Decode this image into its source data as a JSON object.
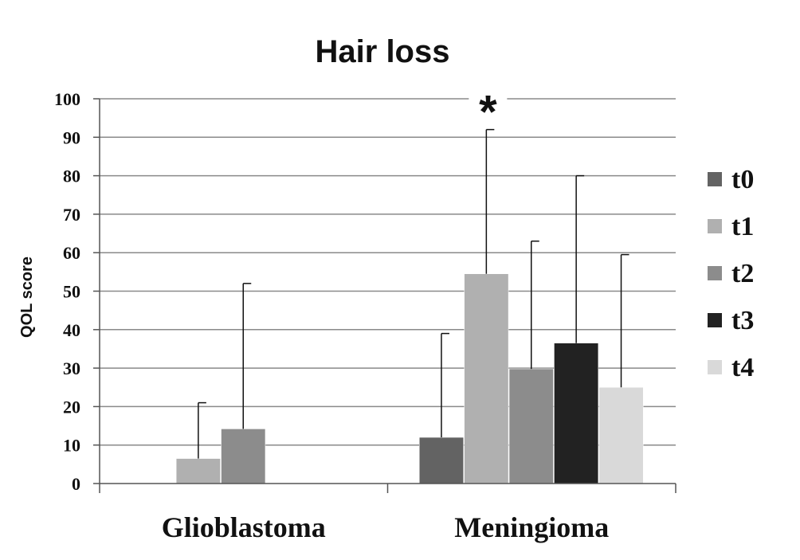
{
  "chart_data": {
    "type": "bar",
    "title": "Hair loss",
    "ylabel": "QOL score",
    "xlabel": "",
    "ylim": [
      0,
      100
    ],
    "yticks": [
      "0",
      "10",
      "20",
      "30",
      "40",
      "50",
      "60",
      "70",
      "80",
      "90",
      "100"
    ],
    "categories": [
      "Glioblastoma",
      "Meningioma"
    ],
    "grid": true,
    "legend_position": "right",
    "series": [
      {
        "name": "t0",
        "color": "#636363",
        "values": [
          null,
          12
        ],
        "error_upper": [
          null,
          39
        ]
      },
      {
        "name": "t1",
        "color": "#b0b0b0",
        "values": [
          6.5,
          54.5
        ],
        "error_upper": [
          21,
          92
        ]
      },
      {
        "name": "t2",
        "color": "#8c8c8c",
        "values": [
          14.2,
          29.8
        ],
        "error_upper": [
          52,
          63
        ]
      },
      {
        "name": "t3",
        "color": "#222222",
        "values": [
          null,
          36.5
        ],
        "error_upper": [
          null,
          80
        ]
      },
      {
        "name": "t4",
        "color": "#d9d9d9",
        "values": [
          null,
          25
        ],
        "error_upper": [
          null,
          59.5
        ]
      }
    ],
    "annotations": [
      {
        "text": "*",
        "category": "Meningioma",
        "series": "t1"
      }
    ]
  }
}
